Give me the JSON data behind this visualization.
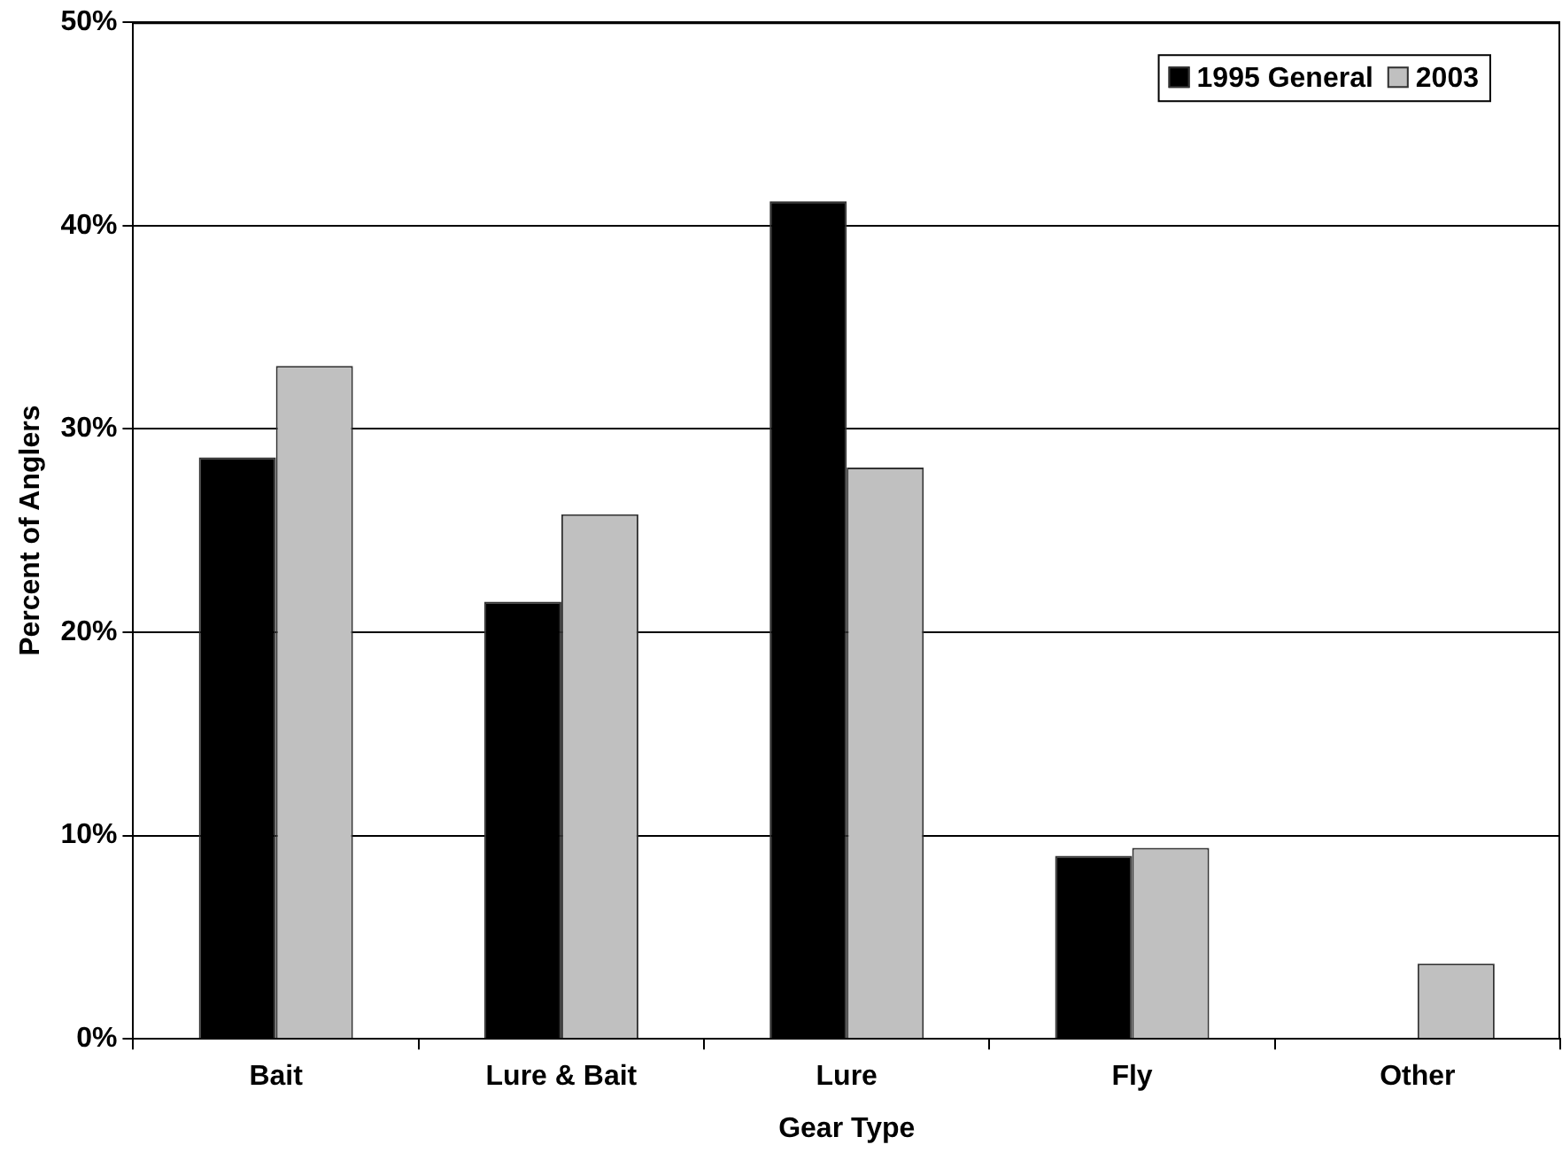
{
  "chart_data": {
    "type": "bar",
    "xlabel": "Gear Type",
    "ylabel": "Percent of Anglers",
    "categories": [
      "Bait",
      "Lure & Bait",
      "Lure",
      "Fly",
      "Other"
    ],
    "series": [
      {
        "name": "1995 General",
        "color": "#000000",
        "values": [
          28.6,
          21.5,
          41.2,
          9.0,
          0
        ]
      },
      {
        "name": "2003",
        "color": "#c0c0c0",
        "values": [
          33.1,
          25.8,
          28.1,
          9.4,
          3.7
        ]
      }
    ],
    "ylim": [
      0,
      50
    ],
    "yticks": [
      {
        "value": 0,
        "label": "0%"
      },
      {
        "value": 10,
        "label": "10%"
      },
      {
        "value": 20,
        "label": "20%"
      },
      {
        "value": 30,
        "label": "30%"
      },
      {
        "value": 40,
        "label": "40%"
      },
      {
        "value": 50,
        "label": "50%"
      }
    ],
    "grid": "y",
    "legend": "top right"
  }
}
